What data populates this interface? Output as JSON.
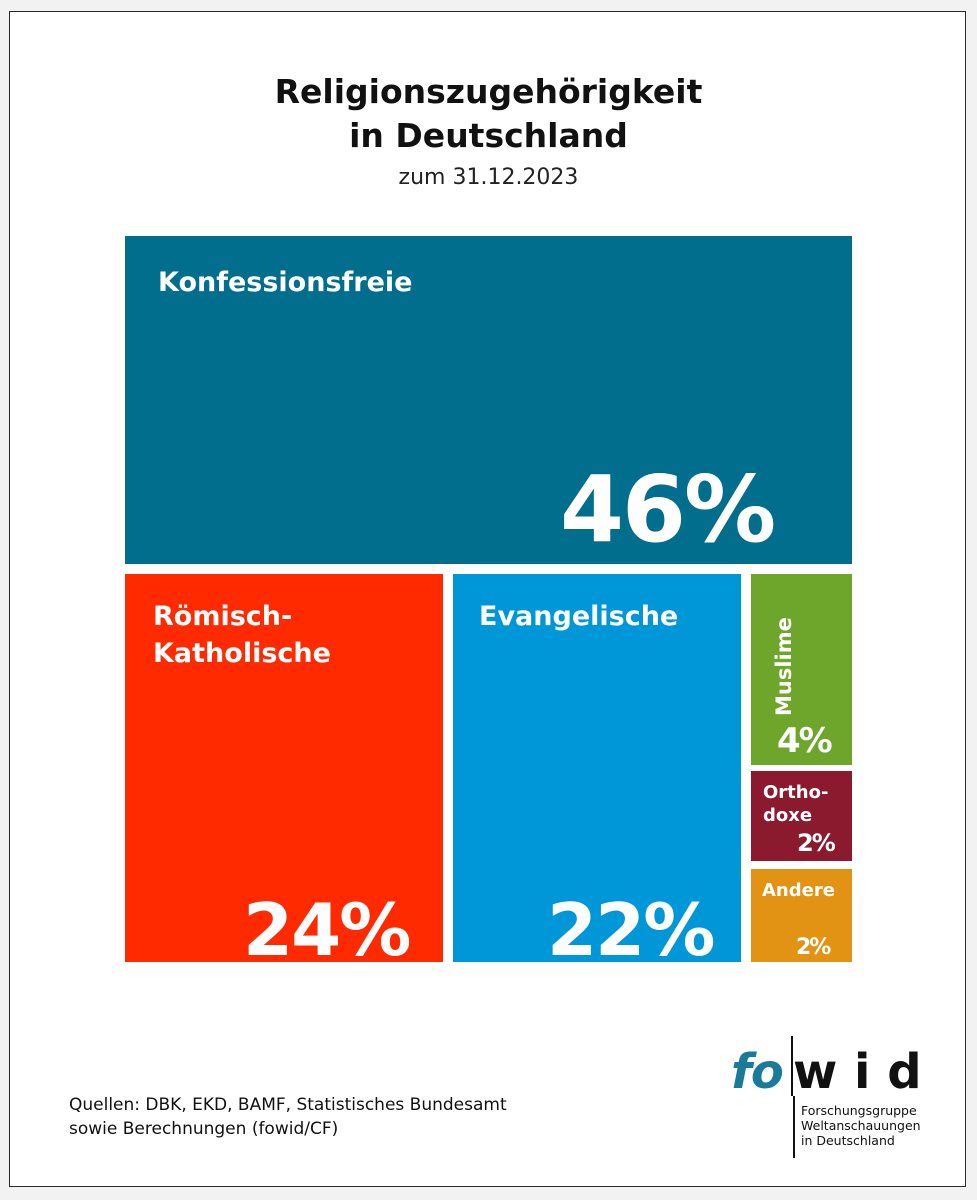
{
  "chart_data": {
    "type": "treemap",
    "title_line1": "Religionszugehörigkeit",
    "title_line2": "in Deutschland",
    "subtitle": "zum 31.12.2023",
    "categories": [
      "Konfessionsfreie",
      "Römisch-Katholische",
      "Evangelische",
      "Muslime",
      "Orthodoxe",
      "Andere"
    ],
    "values": [
      46,
      24,
      22,
      4,
      2,
      2
    ],
    "tiles": [
      {
        "name": "Konfessionsfreie",
        "label": "Konfessionsfreie",
        "value": 46,
        "value_label": "46%",
        "color": "#006e8c"
      },
      {
        "name": "Römisch-Katholische",
        "label": "Römisch-\nKatholische",
        "value": 24,
        "value_label": "24%",
        "color": "#ff2a00"
      },
      {
        "name": "Evangelische",
        "label": "Evangelische",
        "value": 22,
        "value_label": "22%",
        "color": "#0097d9"
      },
      {
        "name": "Muslime",
        "label": "Muslime",
        "value": 4,
        "value_label": "4%",
        "color": "#6ea52b"
      },
      {
        "name": "Orthodoxe",
        "label": "Ortho-\ndoxe",
        "value": 2,
        "value_label": "2%",
        "color": "#8c1a2f"
      },
      {
        "name": "Andere",
        "label": "Andere",
        "value": 2,
        "value_label": "2%",
        "color": "#e39313"
      }
    ]
  },
  "source": {
    "text": "Quellen: DBK, EKD, BAMF, Statistisches Bundesamt\nsowie Berechnungen (fowid/CF)"
  },
  "logo": {
    "part1": "fo",
    "part2": "w i d",
    "text": "Forschungsgruppe\nWeltanschauungen\nin Deutschland"
  }
}
